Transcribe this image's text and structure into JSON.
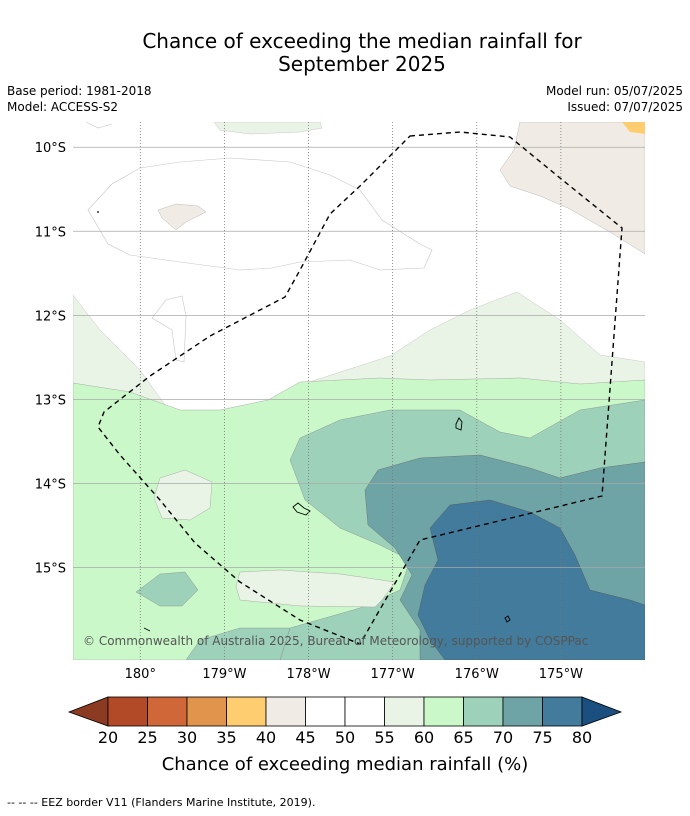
{
  "title_line1": "Chance of exceeding the median rainfall for",
  "title_line2": "September 2025",
  "meta_left": [
    "Base period: 1981-2018",
    "Model: ACCESS-S2"
  ],
  "meta_right": [
    "Model run: 05/07/2025",
    "Issued: 07/07/2025"
  ],
  "copyright": "© Commonwealth of Australia 2025, Bureau of Meteorology, supported by COSPPac",
  "footer": "--  --  -- EEZ border V11 (Flanders Marine Institute, 2019).",
  "chart_data": {
    "type": "heatmap",
    "title": "Chance of exceeding the median rainfall for September 2025",
    "map_extent": {
      "lon": [
        -180.8,
        -174.0
      ],
      "lat": [
        -9.7,
        -16.1
      ]
    },
    "x_ticks": [
      {
        "lon": -180,
        "label": "180°"
      },
      {
        "lon": -179,
        "label": "179°W"
      },
      {
        "lon": -178,
        "label": "178°W"
      },
      {
        "lon": -177,
        "label": "177°W"
      },
      {
        "lon": -176,
        "label": "176°W"
      },
      {
        "lon": -175,
        "label": "175°W"
      }
    ],
    "y_ticks": [
      {
        "lat": -10,
        "label": "10°S"
      },
      {
        "lat": -11,
        "label": "11°S"
      },
      {
        "lat": -12,
        "label": "12°S"
      },
      {
        "lat": -13,
        "label": "13°S"
      },
      {
        "lat": -14,
        "label": "14°S"
      },
      {
        "lat": -15,
        "label": "15°S"
      }
    ],
    "grid": true,
    "colorbar": {
      "label": "Chance of exceeding median rainfall (%)",
      "ticks": [
        "20",
        "25",
        "30",
        "35",
        "40",
        "45",
        "50",
        "55",
        "60",
        "65",
        "70",
        "75",
        "80"
      ],
      "under_color": "#8c3a22",
      "over_color": "#1a4f80",
      "colors": [
        "#b24a28",
        "#cf6738",
        "#e0944c",
        "#fdcd70",
        "#f0ece5",
        "#ffffff",
        "#ffffff",
        "#e9f4e7",
        "#caf8c8",
        "#9dd1b9",
        "#6fa4a6",
        "#427b9b"
      ]
    },
    "regions": [
      {
        "level": "55-60",
        "color": "#e9f4e7",
        "area": "upper-left, 12-13.8°S band and 15.4°S patch"
      },
      {
        "level": "60-65",
        "color": "#caf8c8",
        "area": "southwest and central band"
      },
      {
        "level": "65-70",
        "color": "#9dd1b9",
        "area": "southeast"
      },
      {
        "level": "70-75",
        "color": "#6fa4a6",
        "area": "south-central to east"
      },
      {
        "level": "75-80",
        "color": "#427b9b",
        "area": "far southeast"
      },
      {
        "level": "40-45",
        "color": "#f0ece5",
        "area": "northeast corner and small patch near 10.8°S 179.5°W"
      },
      {
        "level": "35-40",
        "color": "#fdcd70",
        "area": "extreme northeast corner"
      }
    ]
  }
}
